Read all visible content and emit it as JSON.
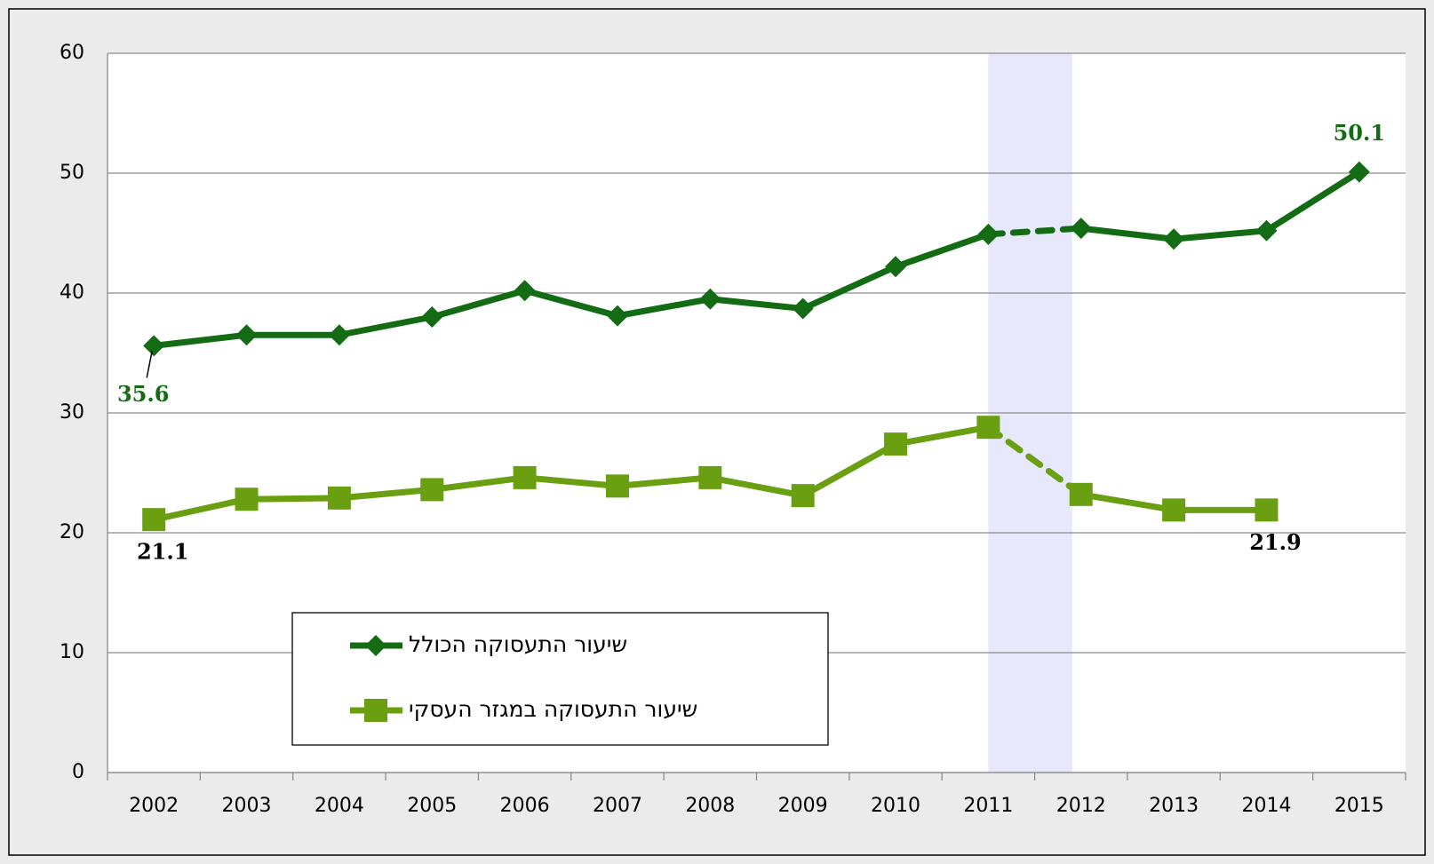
{
  "chart_data": {
    "type": "line",
    "categories": [
      "2002",
      "2003",
      "2004",
      "2005",
      "2006",
      "2007",
      "2008",
      "2009",
      "2010",
      "2011",
      "2012",
      "2013",
      "2014",
      "2015"
    ],
    "series": [
      {
        "name": "שיעור התעסוקה הכולל",
        "color": "#136b13",
        "marker": "diamond",
        "labeled_points": [
          0,
          13
        ],
        "values": [
          35.6,
          36.5,
          36.5,
          38.0,
          40.2,
          38.1,
          39.5,
          38.7,
          42.2,
          44.9,
          45.4,
          44.5,
          45.2,
          50.1
        ]
      },
      {
        "name": "שיעור התעסוקה במגזר העסקי",
        "color": "#6b9f12",
        "marker": "square",
        "labeled_points": [
          0,
          12
        ],
        "values": [
          21.1,
          22.8,
          22.9,
          23.6,
          24.6,
          23.9,
          24.6,
          23.1,
          27.4,
          28.8,
          23.2,
          21.9,
          21.9,
          null
        ]
      }
    ],
    "dashed_span": [
      "2011",
      "2012"
    ],
    "ylim": [
      0,
      60
    ],
    "yticks": [
      0,
      10,
      20,
      30,
      40,
      50,
      60
    ],
    "grid": true,
    "legend": "lower left"
  }
}
